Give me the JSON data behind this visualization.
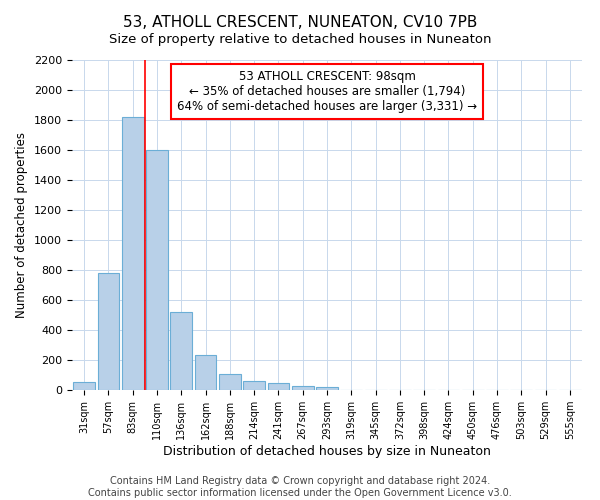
{
  "title": "53, ATHOLL CRESCENT, NUNEATON, CV10 7PB",
  "subtitle": "Size of property relative to detached houses in Nuneaton",
  "xlabel": "Distribution of detached houses by size in Nuneaton",
  "ylabel": "Number of detached properties",
  "categories": [
    "31sqm",
    "57sqm",
    "83sqm",
    "110sqm",
    "136sqm",
    "162sqm",
    "188sqm",
    "214sqm",
    "241sqm",
    "267sqm",
    "293sqm",
    "319sqm",
    "345sqm",
    "372sqm",
    "398sqm",
    "424sqm",
    "450sqm",
    "476sqm",
    "503sqm",
    "529sqm",
    "555sqm"
  ],
  "values": [
    55,
    780,
    1820,
    1600,
    520,
    235,
    110,
    60,
    45,
    25,
    20,
    0,
    0,
    0,
    0,
    0,
    0,
    0,
    0,
    0,
    0
  ],
  "bar_color": "#b8d0e8",
  "bar_edge_color": "#6baed6",
  "grid_color": "#c8d8ec",
  "red_line_x": 2.5,
  "annotation_line1": "53 ATHOLL CRESCENT: 98sqm",
  "annotation_line2": "← 35% of detached houses are smaller (1,794)",
  "annotation_line3": "64% of semi-detached houses are larger (3,331) →",
  "annotation_box_color": "white",
  "annotation_box_edge_color": "red",
  "ylim": [
    0,
    2200
  ],
  "yticks": [
    0,
    200,
    400,
    600,
    800,
    1000,
    1200,
    1400,
    1600,
    1800,
    2000,
    2200
  ],
  "footer_line1": "Contains HM Land Registry data © Crown copyright and database right 2024.",
  "footer_line2": "Contains public sector information licensed under the Open Government Licence v3.0.",
  "title_fontsize": 11,
  "subtitle_fontsize": 9.5,
  "xlabel_fontsize": 9,
  "ylabel_fontsize": 8.5,
  "annotation_fontsize": 8.5,
  "footer_fontsize": 7,
  "background_color": "#ffffff",
  "grid_on": true
}
